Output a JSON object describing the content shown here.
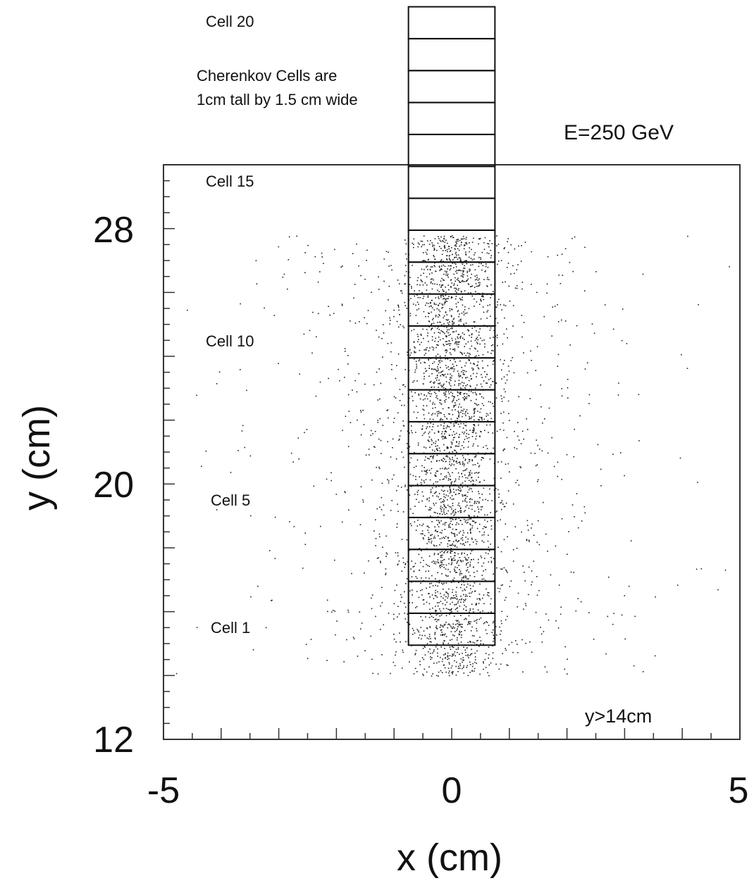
{
  "chart_data": {
    "type": "scatter",
    "title": "",
    "xlabel": "x (cm)",
    "ylabel": "y (cm)",
    "xlim": [
      -5,
      5
    ],
    "ylim": [
      12,
      30
    ],
    "x_ticks": [
      {
        "value": -5,
        "label": "-5"
      },
      {
        "value": 0,
        "label": "0"
      },
      {
        "value": 5,
        "label": "5"
      }
    ],
    "y_ticks": [
      {
        "value": 12,
        "label": "12"
      },
      {
        "value": 20,
        "label": "20"
      },
      {
        "value": 28,
        "label": "28"
      }
    ],
    "x_minor_step": 0.5,
    "y_minor_step": 0.5,
    "grid": false,
    "points": {
      "description_note": "",
      "x_range": [
        -0.75,
        0.75
      ],
      "y_range": [
        14,
        27.8
      ],
      "approx_count_shown": 3500
    },
    "cells": {
      "count": 20,
      "x_range": [
        -0.75,
        0.75
      ],
      "y_start": 14.95,
      "height": 1.0,
      "labels": [
        {
          "cell": 1,
          "text": "Cell 1"
        },
        {
          "cell": 5,
          "text": "Cell 5"
        },
        {
          "cell": 10,
          "text": "Cell 10"
        },
        {
          "cell": 15,
          "text": "Cell 15"
        },
        {
          "cell": 20,
          "text": "Cell 20"
        }
      ]
    },
    "annotations": {
      "cell_note_line1": "Cherenkov Cells are",
      "cell_note_line2": "1cm tall by 1.5 cm wide",
      "energy": "E=250 GeV",
      "condition": "y>14cm"
    }
  }
}
